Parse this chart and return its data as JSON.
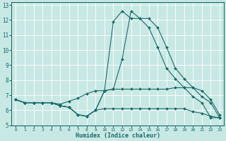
{
  "xlabel": "Humidex (Indice chaleur)",
  "bg_color": "#c8e8e4",
  "line_color": "#1a6b6b",
  "grid_color": "#ffffff",
  "xlim": [
    -0.5,
    23.5
  ],
  "ylim": [
    5,
    13.2
  ],
  "yticks": [
    5,
    6,
    7,
    8,
    9,
    10,
    11,
    12,
    13
  ],
  "xticks": [
    0,
    1,
    2,
    3,
    4,
    5,
    6,
    7,
    8,
    9,
    10,
    11,
    12,
    13,
    14,
    15,
    16,
    17,
    18,
    19,
    20,
    21,
    22,
    23
  ],
  "series": [
    [
      6.7,
      6.5,
      6.5,
      6.5,
      6.5,
      6.3,
      6.2,
      5.7,
      5.6,
      6.0,
      7.3,
      11.9,
      12.6,
      12.1,
      12.1,
      11.5,
      10.2,
      8.8,
      8.1,
      7.5,
      6.9,
      6.5,
      5.5,
      5.5
    ],
    [
      6.7,
      6.5,
      6.5,
      6.5,
      6.5,
      6.3,
      6.2,
      5.7,
      5.6,
      6.0,
      7.3,
      7.4,
      9.4,
      12.6,
      12.1,
      12.1,
      11.5,
      10.2,
      8.8,
      8.1,
      7.5,
      6.9,
      6.5,
      5.5
    ],
    [
      6.7,
      6.5,
      6.5,
      6.5,
      6.5,
      6.4,
      6.6,
      6.8,
      7.1,
      7.3,
      7.3,
      7.4,
      7.4,
      7.4,
      7.4,
      7.4,
      7.4,
      7.4,
      7.5,
      7.5,
      7.5,
      7.3,
      6.7,
      5.7
    ],
    [
      6.7,
      6.5,
      6.5,
      6.5,
      6.5,
      6.3,
      6.2,
      5.7,
      5.6,
      6.0,
      6.1,
      6.1,
      6.1,
      6.1,
      6.1,
      6.1,
      6.1,
      6.1,
      6.1,
      6.1,
      5.9,
      5.8,
      5.6,
      5.5
    ]
  ]
}
